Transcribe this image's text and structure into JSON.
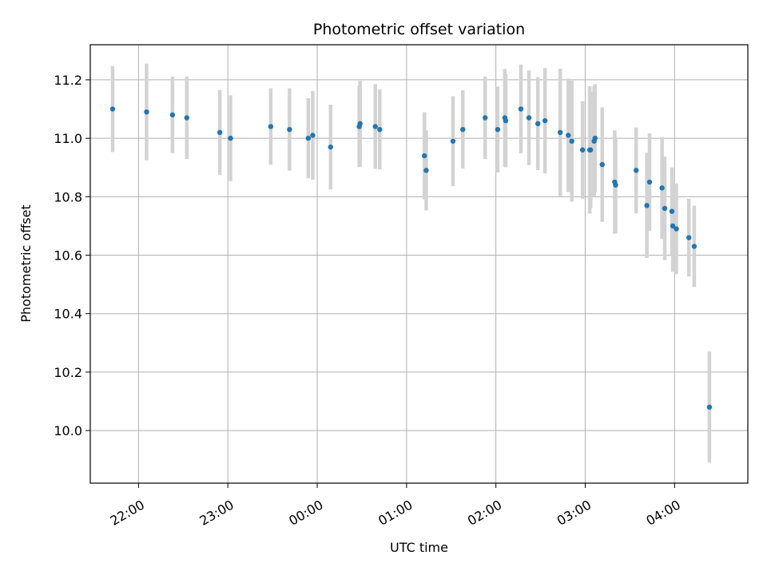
{
  "chart_data": {
    "type": "scatter",
    "title": "Photometric offset variation",
    "xlabel": "UTC time",
    "ylabel": "Photometric offset",
    "xlim": [
      -2.54,
      4.82
    ],
    "ylim": [
      9.82,
      11.32
    ],
    "grid": true,
    "x_ticks": [
      {
        "value": -2.0,
        "label": "22:00"
      },
      {
        "value": -1.0,
        "label": "23:00"
      },
      {
        "value": 0.0,
        "label": "00:00"
      },
      {
        "value": 1.0,
        "label": "01:00"
      },
      {
        "value": 2.0,
        "label": "02:00"
      },
      {
        "value": 3.0,
        "label": "03:00"
      },
      {
        "value": 4.0,
        "label": "04:00"
      }
    ],
    "y_ticks": [
      {
        "value": 10.0,
        "label": "10.0"
      },
      {
        "value": 10.2,
        "label": "10.2"
      },
      {
        "value": 10.4,
        "label": "10.4"
      },
      {
        "value": 10.6,
        "label": "10.6"
      },
      {
        "value": 10.8,
        "label": "10.8"
      },
      {
        "value": 11.0,
        "label": "11.0"
      },
      {
        "value": 11.2,
        "label": "11.2"
      }
    ],
    "colors": {
      "point": "#1f77b4",
      "errorbar": "#d3d3d3",
      "grid": "#b0b0b0"
    },
    "series": [
      {
        "name": "offset",
        "points": [
          {
            "x": -2.29,
            "y": 11.1,
            "err": 0.147
          },
          {
            "x": -1.91,
            "y": 11.09,
            "err": 0.165
          },
          {
            "x": -1.62,
            "y": 11.08,
            "err": 0.131
          },
          {
            "x": -1.46,
            "y": 11.07,
            "err": 0.141
          },
          {
            "x": -1.09,
            "y": 11.02,
            "err": 0.145
          },
          {
            "x": -0.97,
            "y": 11.0,
            "err": 0.147
          },
          {
            "x": -0.52,
            "y": 11.04,
            "err": 0.131
          },
          {
            "x": -0.31,
            "y": 11.03,
            "err": 0.141
          },
          {
            "x": -0.1,
            "y": 11.0,
            "err": 0.137
          },
          {
            "x": -0.05,
            "y": 11.01,
            "err": 0.152
          },
          {
            "x": 0.15,
            "y": 10.97,
            "err": 0.145
          },
          {
            "x": 0.47,
            "y": 11.04,
            "err": 0.139
          },
          {
            "x": 0.48,
            "y": 11.05,
            "err": 0.147
          },
          {
            "x": 0.65,
            "y": 11.04,
            "err": 0.145
          },
          {
            "x": 0.7,
            "y": 11.03,
            "err": 0.137
          },
          {
            "x": 1.2,
            "y": 10.94,
            "err": 0.149
          },
          {
            "x": 1.22,
            "y": 10.89,
            "err": 0.137
          },
          {
            "x": 1.52,
            "y": 10.99,
            "err": 0.154
          },
          {
            "x": 1.63,
            "y": 11.03,
            "err": 0.134
          },
          {
            "x": 1.88,
            "y": 11.07,
            "err": 0.141
          },
          {
            "x": 2.02,
            "y": 11.03,
            "err": 0.147
          },
          {
            "x": 2.1,
            "y": 11.07,
            "err": 0.167
          },
          {
            "x": 2.11,
            "y": 11.06,
            "err": 0.159
          },
          {
            "x": 2.28,
            "y": 11.1,
            "err": 0.152
          },
          {
            "x": 2.37,
            "y": 11.07,
            "err": 0.162
          },
          {
            "x": 2.47,
            "y": 11.05,
            "err": 0.159
          },
          {
            "x": 2.55,
            "y": 11.06,
            "err": 0.18
          },
          {
            "x": 2.72,
            "y": 11.02,
            "err": 0.218
          },
          {
            "x": 2.81,
            "y": 11.01,
            "err": 0.194
          },
          {
            "x": 2.85,
            "y": 10.99,
            "err": 0.207
          },
          {
            "x": 2.97,
            "y": 10.96,
            "err": 0.167
          },
          {
            "x": 3.05,
            "y": 10.96,
            "err": 0.218
          },
          {
            "x": 3.06,
            "y": 10.96,
            "err": 0.199
          },
          {
            "x": 3.1,
            "y": 10.99,
            "err": 0.188
          },
          {
            "x": 3.11,
            "y": 11.0,
            "err": 0.185
          },
          {
            "x": 3.19,
            "y": 10.91,
            "err": 0.196
          },
          {
            "x": 3.33,
            "y": 10.85,
            "err": 0.177
          },
          {
            "x": 3.34,
            "y": 10.84,
            "err": 0.164
          },
          {
            "x": 3.57,
            "y": 10.89,
            "err": 0.147
          },
          {
            "x": 3.69,
            "y": 10.77,
            "err": 0.18
          },
          {
            "x": 3.72,
            "y": 10.85,
            "err": 0.167
          },
          {
            "x": 3.86,
            "y": 10.83,
            "err": 0.174
          },
          {
            "x": 3.89,
            "y": 10.76,
            "err": 0.177
          },
          {
            "x": 3.97,
            "y": 10.75,
            "err": 0.15
          },
          {
            "x": 3.98,
            "y": 10.7,
            "err": 0.157
          },
          {
            "x": 4.02,
            "y": 10.69,
            "err": 0.155
          },
          {
            "x": 4.16,
            "y": 10.66,
            "err": 0.133
          },
          {
            "x": 4.22,
            "y": 10.63,
            "err": 0.139
          },
          {
            "x": 4.39,
            "y": 10.08,
            "err": 0.19
          }
        ]
      }
    ]
  }
}
